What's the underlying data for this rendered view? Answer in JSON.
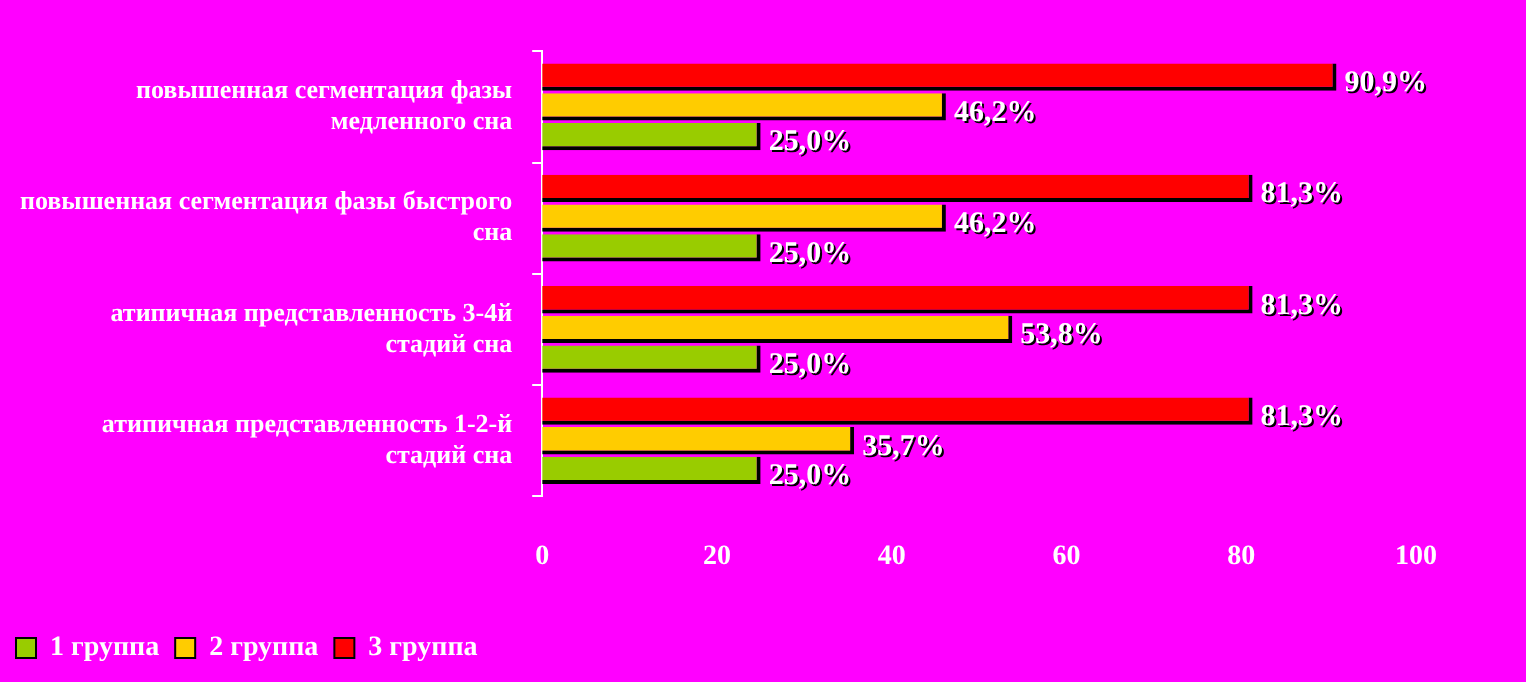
{
  "chart_data": {
    "type": "bar",
    "orientation": "horizontal",
    "categories": [
      "повышенная сегментация фазы медленного сна",
      "повышенная сегментация фазы быстрого сна",
      "атипичная представленность 3-4й стадий сна",
      "атипичная представленность 1-2-й стадий сна"
    ],
    "series": [
      {
        "name": "1 группа",
        "color": "#99cc00",
        "values": [
          25.0,
          25.0,
          25.0,
          25.0
        ],
        "value_labels": [
          "25,0%",
          "25,0%",
          "25,0%",
          "25,0%"
        ]
      },
      {
        "name": "2 группа",
        "color": "#ffcc00",
        "values": [
          46.2,
          46.2,
          53.8,
          35.7
        ],
        "value_labels": [
          "46,2%",
          "46,2%",
          "53,8%",
          "35,7%"
        ]
      },
      {
        "name": "3 группа",
        "color": "#ff0000",
        "values": [
          90.9,
          81.3,
          81.3,
          81.3
        ],
        "value_labels": [
          "90,9%",
          "81,3%",
          "81,3%",
          "81,3%"
        ]
      }
    ],
    "xlim": [
      0,
      100
    ],
    "xticks": [
      0,
      20,
      40,
      60,
      80,
      100
    ],
    "grid": false,
    "legend": "bottom left"
  }
}
